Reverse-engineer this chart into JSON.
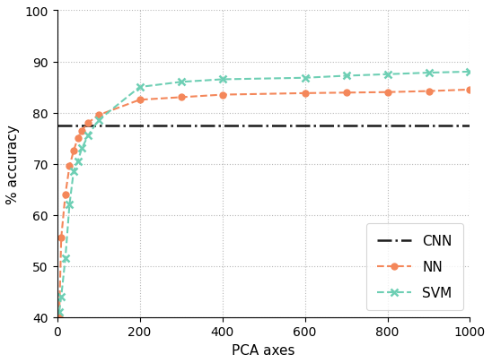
{
  "cnn_y": 77.5,
  "nn_x": [
    5,
    10,
    20,
    30,
    40,
    50,
    60,
    75,
    100,
    200,
    300,
    400,
    600,
    700,
    800,
    900,
    1000
  ],
  "nn_y": [
    40.0,
    55.5,
    64.0,
    69.5,
    72.5,
    75.0,
    76.5,
    78.0,
    79.5,
    82.5,
    83.0,
    83.5,
    83.8,
    83.9,
    84.0,
    84.2,
    84.5
  ],
  "svm_x": [
    5,
    10,
    20,
    30,
    40,
    50,
    60,
    75,
    100,
    200,
    300,
    400,
    600,
    700,
    800,
    900,
    1000
  ],
  "svm_y": [
    41.0,
    44.0,
    51.5,
    62.0,
    68.5,
    70.5,
    73.0,
    75.5,
    78.5,
    85.0,
    86.0,
    86.5,
    86.8,
    87.2,
    87.5,
    87.8,
    88.0
  ],
  "nn_color": "#F4875A",
  "svm_color": "#6ECFB4",
  "cnn_color": "#1a1a1a",
  "xlabel": "PCA axes",
  "ylabel": "% accuracy",
  "xlim": [
    0,
    1000
  ],
  "ylim": [
    40,
    100
  ],
  "yticks": [
    40,
    50,
    60,
    70,
    80,
    90,
    100
  ],
  "xticks": [
    0,
    200,
    400,
    600,
    800,
    1000
  ],
  "grid_color": "#b0b0b0",
  "background_color": "#ffffff",
  "legend_labels": [
    "CNN",
    "NN",
    "SVM"
  ]
}
